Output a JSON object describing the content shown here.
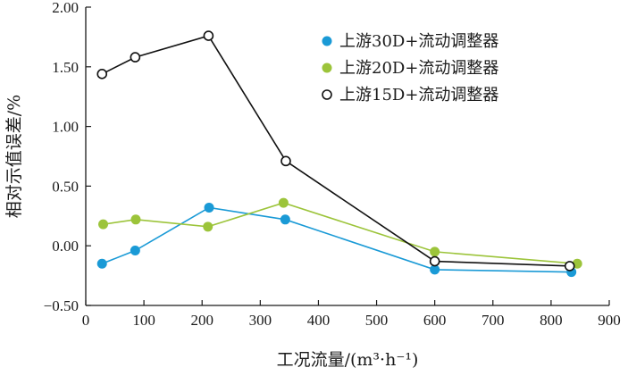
{
  "chart_data": {
    "type": "line",
    "xlabel": "工况流量/(m³·h⁻¹)",
    "ylabel": "相对示值误差/%",
    "xlim": [
      0,
      900
    ],
    "ylim": [
      -0.5,
      2.0
    ],
    "xticks": [
      "0",
      "100",
      "200",
      "300",
      "400",
      "500",
      "600",
      "700",
      "800",
      "900"
    ],
    "yticks": [
      "−0.50",
      "0.00",
      "0.50",
      "1.00",
      "1.50",
      "2.00"
    ],
    "grid": false,
    "legend_position": "top-right",
    "series": [
      {
        "name": "上游30D+流动调整器",
        "color": "#1a9ad6",
        "marker": "filled-circle",
        "x": [
          28,
          85,
          212,
          343,
          600,
          835
        ],
        "y": [
          -0.15,
          -0.04,
          0.32,
          0.22,
          -0.2,
          -0.22
        ]
      },
      {
        "name": "上游20D+流动调整器",
        "color": "#9cc43a",
        "marker": "filled-circle",
        "x": [
          30,
          86,
          210,
          340,
          600,
          845
        ],
        "y": [
          0.18,
          0.22,
          0.16,
          0.36,
          -0.05,
          -0.15
        ]
      },
      {
        "name": "上游15D+流动调整器",
        "color": "#111111",
        "marker": "open-circle",
        "x": [
          28,
          85,
          211,
          344,
          600,
          832
        ],
        "y": [
          1.44,
          1.58,
          1.76,
          0.71,
          -0.13,
          -0.17
        ]
      }
    ]
  }
}
